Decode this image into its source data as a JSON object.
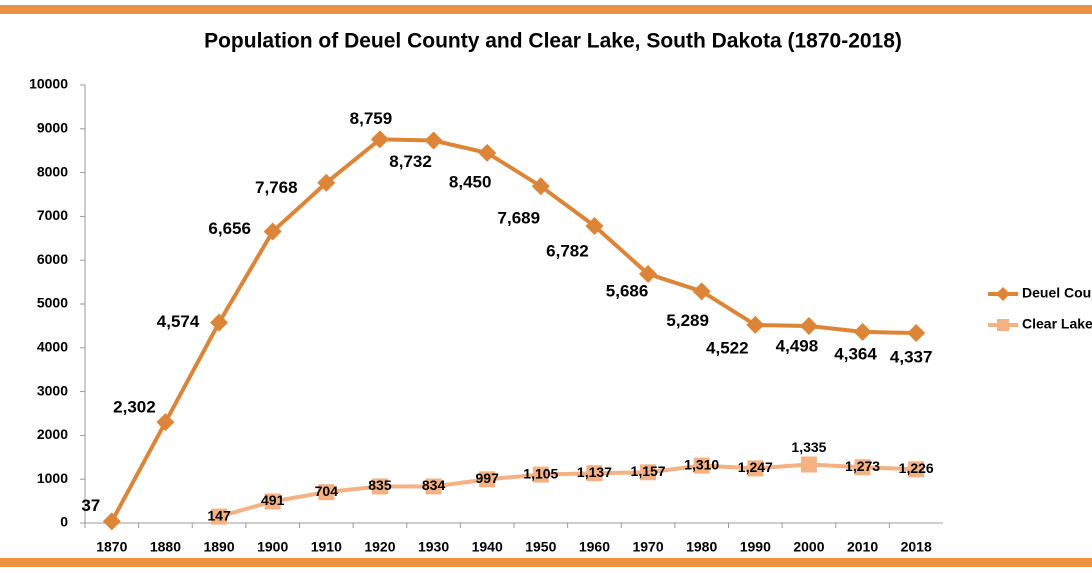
{
  "chart_data": {
    "type": "line",
    "title": "Population of Deuel County and Clear Lake, South Dakota (1870-2018)",
    "categories": [
      "1870",
      "1880",
      "1890",
      "1900",
      "1910",
      "1920",
      "1930",
      "1940",
      "1950",
      "1960",
      "1970",
      "1980",
      "1990",
      "2000",
      "2010",
      "2018"
    ],
    "series": [
      {
        "name": "Deuel County",
        "color": "#dc8538",
        "marker": "diamond",
        "values": [
          37,
          2302,
          4574,
          6656,
          7768,
          8759,
          8732,
          8450,
          7689,
          6782,
          5686,
          5289,
          4522,
          4498,
          4364,
          4337
        ],
        "value_labels": [
          "37",
          "2,302",
          "4,574",
          "6,656",
          "7,768",
          "8,759",
          "8,732",
          "8,450",
          "7,689",
          "6,782",
          "5,686",
          "5,289",
          "4,522",
          "4,498",
          "4,364",
          "4,337"
        ]
      },
      {
        "name": "Clear Lake",
        "color": "#f4b183",
        "marker": "square",
        "values": [
          null,
          null,
          147,
          491,
          704,
          835,
          834,
          997,
          1105,
          1137,
          1157,
          1310,
          1247,
          1335,
          1273,
          1226
        ],
        "value_labels": [
          null,
          null,
          "147",
          "491",
          "704",
          "835",
          "834",
          "997",
          "1,105",
          "1,137",
          "1,157",
          "1,310",
          "1,247",
          "1,335",
          "1,273",
          "1,226"
        ]
      }
    ],
    "ylim": [
      0,
      10000
    ],
    "yticks": [
      0,
      1000,
      2000,
      3000,
      4000,
      5000,
      6000,
      7000,
      8000,
      9000,
      10000
    ],
    "grid": false,
    "legend": "right"
  }
}
